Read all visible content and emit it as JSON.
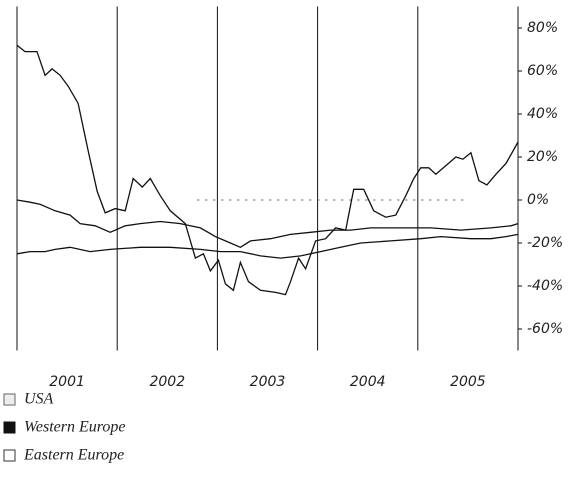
{
  "chart_data": {
    "type": "line",
    "xlim": [
      2001,
      2006
    ],
    "xticks": [
      {
        "value": 2001.5,
        "label": "2001"
      },
      {
        "value": 2002.5,
        "label": "2002"
      },
      {
        "value": 2003.5,
        "label": "2003"
      },
      {
        "value": 2004.5,
        "label": "2004"
      },
      {
        "value": 2005.5,
        "label": "2005"
      }
    ],
    "xgrid": [
      2001,
      2002,
      2003,
      2004,
      2005,
      2006
    ],
    "ylim": [
      -70,
      90
    ],
    "yticks": [
      {
        "value": 80,
        "label": "80%"
      },
      {
        "value": 60,
        "label": "60%"
      },
      {
        "value": 40,
        "label": "40%"
      },
      {
        "value": 20,
        "label": "20%"
      },
      {
        "value": 0,
        "label": "0%"
      },
      {
        "value": -20,
        "label": "-20%"
      },
      {
        "value": -40,
        "label": "-40%"
      },
      {
        "value": -60,
        "label": "-60%"
      }
    ],
    "series": [
      {
        "name": "USA",
        "color": "#111111",
        "x": [
          2001.0,
          2001.08,
          2001.2,
          2001.28,
          2001.35,
          2001.43,
          2001.51,
          2001.61,
          2001.71,
          2001.8,
          2001.88,
          2001.98,
          2002.08,
          2002.16,
          2002.25,
          2002.33,
          2002.43,
          2002.53,
          2002.68,
          2002.78,
          2002.86,
          2002.93,
          2003.01,
          2003.08,
          2003.16,
          2003.23,
          2003.31,
          2003.43,
          2003.58,
          2003.68,
          2003.73,
          2003.81,
          2003.88,
          2003.98,
          2004.08,
          2004.18,
          2004.28,
          2004.36,
          2004.46,
          2004.56,
          2004.68,
          2004.78,
          2004.88,
          2004.96,
          2005.03,
          2005.11,
          2005.18,
          2005.28,
          2005.38,
          2005.45,
          2005.53,
          2005.61,
          2005.69,
          2005.78,
          2005.88,
          2006.0
        ],
        "values": [
          72,
          69,
          69,
          58,
          61,
          58,
          53,
          45,
          23,
          4,
          -6,
          -4,
          -5,
          10,
          6,
          10,
          2,
          -5,
          -11,
          -27,
          -25,
          -33,
          -28,
          -39,
          -42,
          -29,
          -38,
          -42,
          -43,
          -44,
          -38,
          -27,
          -32,
          -19,
          -18,
          -13,
          -14,
          5,
          5,
          -5,
          -8,
          -7,
          2,
          10,
          15,
          15,
          12,
          16,
          20,
          19,
          22,
          9,
          7,
          12,
          17,
          27
        ]
      },
      {
        "name": "Western Europe",
        "color": "#111111",
        "x": [
          2001.0,
          2001.13,
          2001.23,
          2001.38,
          2001.53,
          2001.63,
          2001.78,
          2001.93,
          2002.08,
          2002.23,
          2002.43,
          2002.63,
          2002.83,
          2002.98,
          2003.13,
          2003.23,
          2003.33,
          2003.53,
          2003.73,
          2003.93,
          2004.13,
          2004.33,
          2004.53,
          2004.83,
          2005.13,
          2005.43,
          2005.73,
          2005.93,
          2006.0
        ],
        "values": [
          0,
          -1,
          -2,
          -5,
          -7,
          -11,
          -12,
          -15,
          -12,
          -11,
          -10,
          -11,
          -13,
          -17,
          -20,
          -22,
          -19,
          -18,
          -16,
          -15,
          -14,
          -14,
          -13,
          -13,
          -13,
          -14,
          -13,
          -12,
          -11
        ]
      },
      {
        "name": "Eastern Europe",
        "color": "#111111",
        "x": [
          2001.0,
          2001.13,
          2001.28,
          2001.38,
          2001.53,
          2001.73,
          2001.93,
          2002.23,
          2002.53,
          2002.83,
          2003.03,
          2003.23,
          2003.43,
          2003.63,
          2003.83,
          2004.03,
          2004.23,
          2004.43,
          2004.73,
          2005.03,
          2005.23,
          2005.53,
          2005.73,
          2005.88,
          2006.0
        ],
        "values": [
          -25,
          -24,
          -24,
          -23,
          -22,
          -24,
          -23,
          -22,
          -22,
          -23,
          -24,
          -24,
          -26,
          -27,
          -26,
          -24,
          -22,
          -20,
          -19,
          -18,
          -17,
          -18,
          -18,
          -17,
          -16
        ]
      }
    ]
  }
}
